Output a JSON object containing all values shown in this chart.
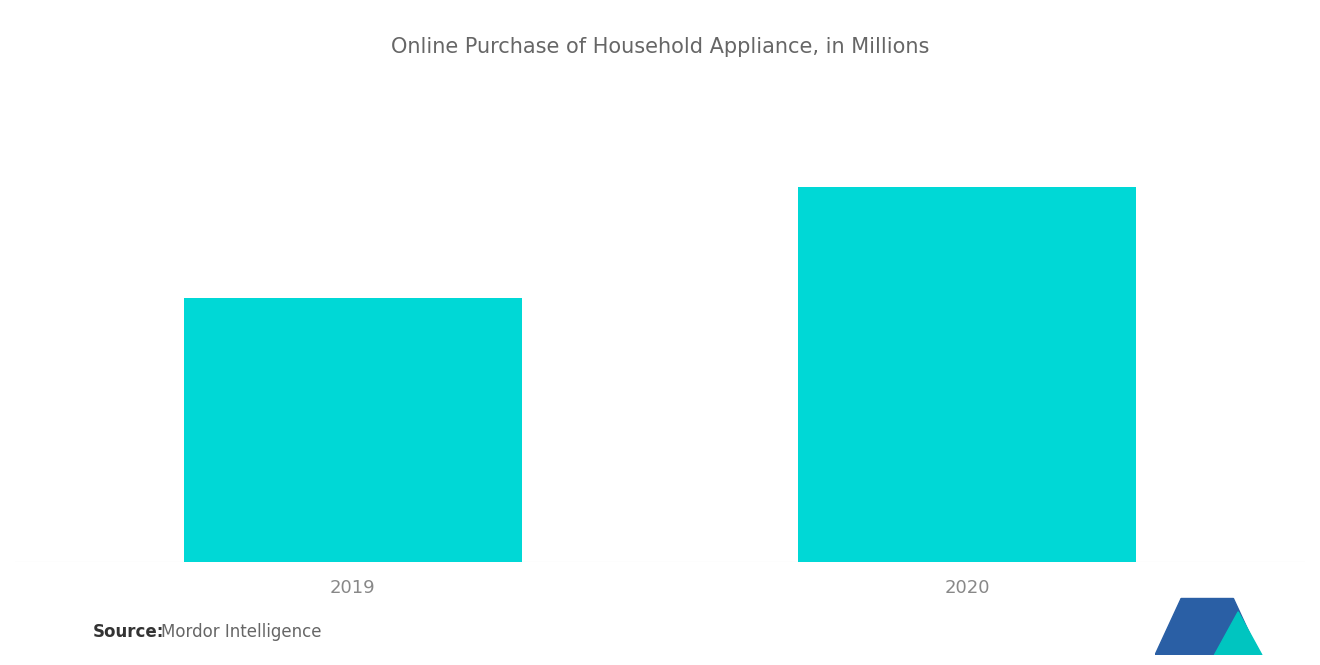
{
  "title": "Online Purchase of Household Appliance, in Millions",
  "categories": [
    "2019",
    "2020"
  ],
  "values": [
    55,
    78
  ],
  "bar_color": "#00D8D6",
  "background_color": "#FFFFFF",
  "ylim": [
    0,
    100
  ],
  "title_fontsize": 15,
  "tick_fontsize": 13,
  "tick_color": "#888888",
  "source_bold": "Source:",
  "source_normal": "  Mordor Intelligence",
  "source_fontsize": 12,
  "bar_width": 0.55,
  "logo_blue": "#2A5FA5",
  "logo_teal": "#00C5C0"
}
